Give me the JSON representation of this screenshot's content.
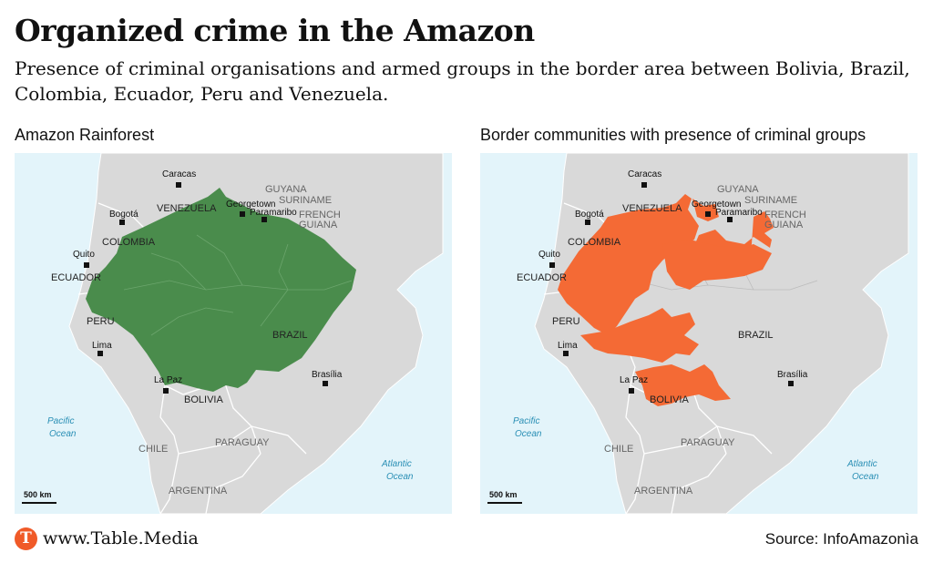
{
  "title": "Organized crime in the Amazon",
  "subtitle": "Presence of criminal organisations and armed groups in the border area between Bolivia, Brazil, Colombia, Ecuador, Peru and Venezuela.",
  "panels": [
    {
      "title": "Amazon Rainforest",
      "highlight_color": "#4a8c4c"
    },
    {
      "title": "Border communities with presence of criminal groups",
      "highlight_color": "#f46a35"
    }
  ],
  "map_labels": {
    "countries": [
      "VENEZUELA",
      "COLOMBIA",
      "ECUADOR",
      "PERU",
      "BRAZIL",
      "BOLIVIA",
      "CHILE",
      "PARAGUAY",
      "ARGENTINA",
      "GUYANA",
      "SURINAME",
      "FRENCH",
      "GUIANA"
    ],
    "cities": [
      "Caracas",
      "Bogotá",
      "Quito",
      "Lima",
      "La Paz",
      "Georgetown",
      "Paramaribo",
      "Brasília"
    ],
    "oceans": [
      "Pacific",
      "Ocean",
      "Atlantic",
      "Ocean"
    ],
    "scale": "500 km"
  },
  "colors": {
    "water": "#e3f4fa",
    "land": "#d9d9d9",
    "border": "#ffffff",
    "ocean_text": "#2a8fb5"
  },
  "footer": {
    "logo": "T",
    "url": "www.Table.Media",
    "source": "Source: InfoAmazonìa"
  }
}
